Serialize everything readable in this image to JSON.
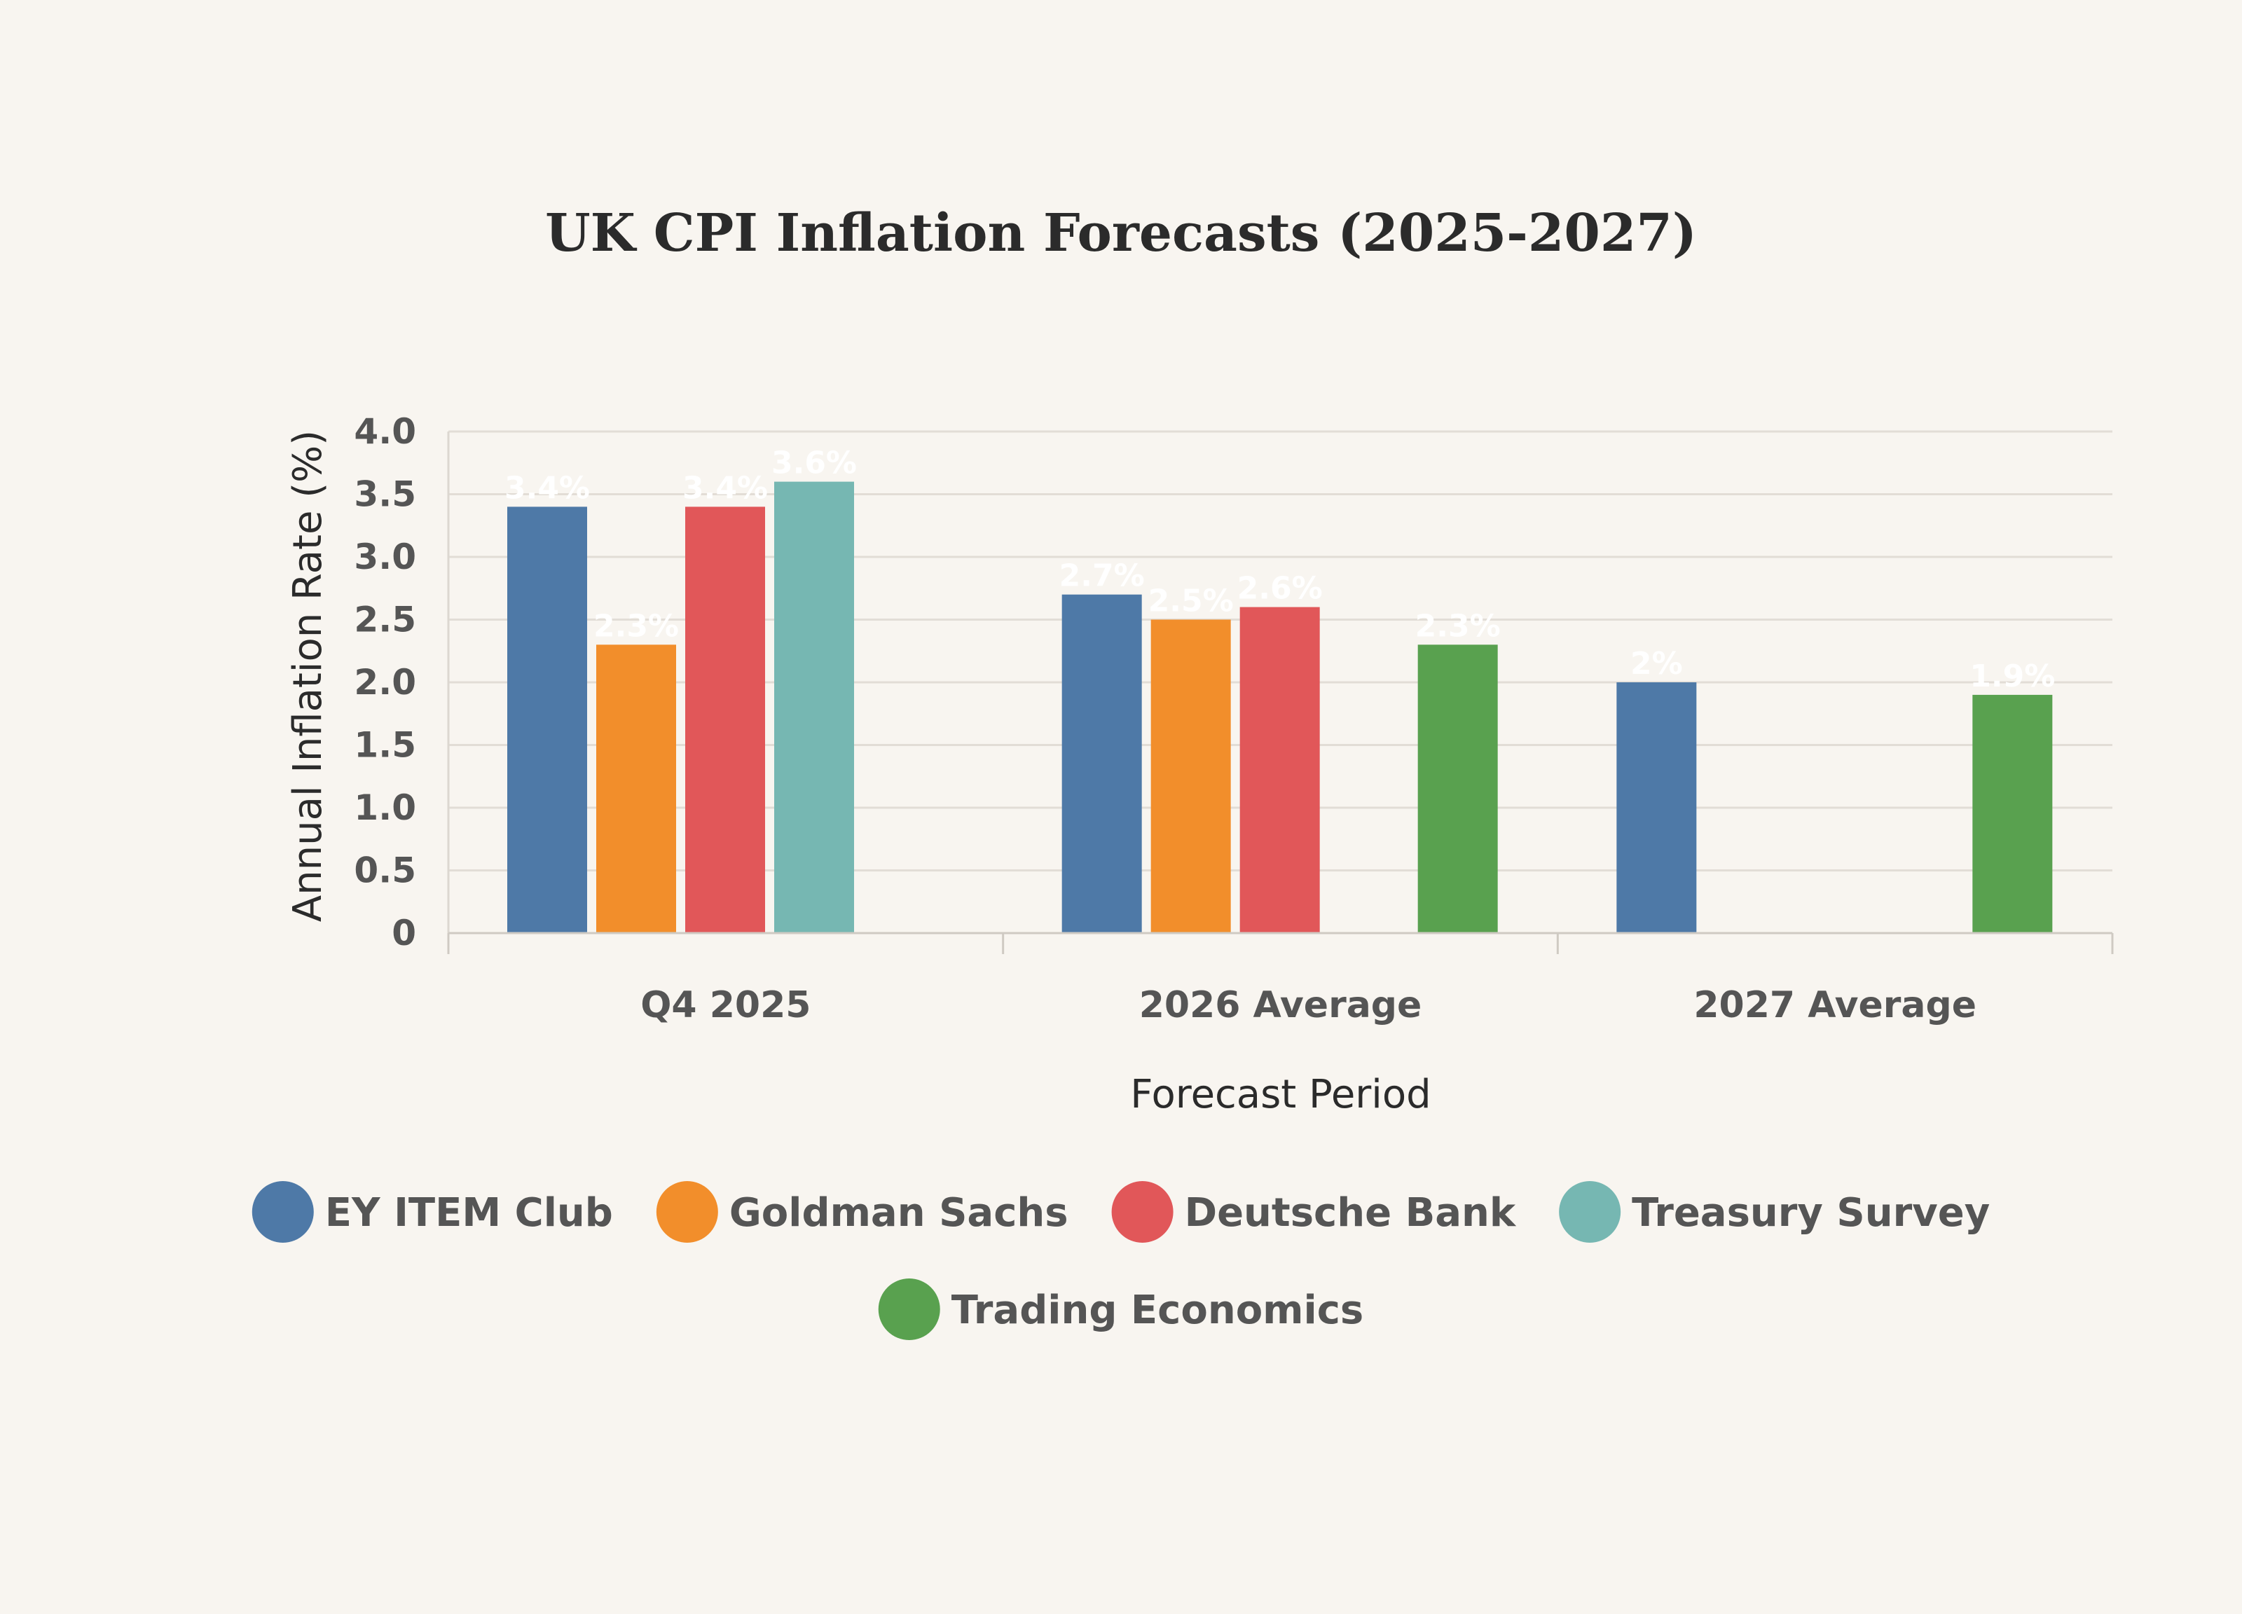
{
  "chart_data": {
    "type": "bar",
    "title": "UK CPI Inflation Forecasts (2025-2027)",
    "xlabel": "Forecast Period",
    "ylabel": "Annual Inflation Rate (%)",
    "ylim": [
      0,
      4.0
    ],
    "yticks": [
      "0",
      "0.5",
      "1.0",
      "1.5",
      "2.0",
      "2.5",
      "3.0",
      "3.5",
      "4.0"
    ],
    "grid": true,
    "legend": "bottom",
    "categories": [
      "Q4 2025",
      "2026 Average",
      "2027 Average"
    ],
    "series": [
      {
        "name": "EY ITEM Club",
        "color": "#4e79a7",
        "values": [
          3.4,
          2.7,
          2.0
        ],
        "labels": [
          "3.4%",
          "2.7%",
          "2%"
        ]
      },
      {
        "name": "Goldman Sachs",
        "color": "#f28e2b",
        "values": [
          2.3,
          2.5,
          null
        ],
        "labels": [
          "2.3%",
          "2.5%",
          ""
        ]
      },
      {
        "name": "Deutsche Bank",
        "color": "#e15759",
        "values": [
          3.4,
          2.6,
          null
        ],
        "labels": [
          "3.4%",
          "2.6%",
          ""
        ]
      },
      {
        "name": "Treasury Survey",
        "color": "#76b7b2",
        "values": [
          3.6,
          null,
          null
        ],
        "labels": [
          "3.6%",
          "",
          ""
        ]
      },
      {
        "name": "Trading Economics",
        "color": "#59a14f",
        "values": [
          null,
          2.3,
          1.9
        ],
        "labels": [
          "",
          "2.3%",
          "1.9%"
        ]
      }
    ]
  }
}
